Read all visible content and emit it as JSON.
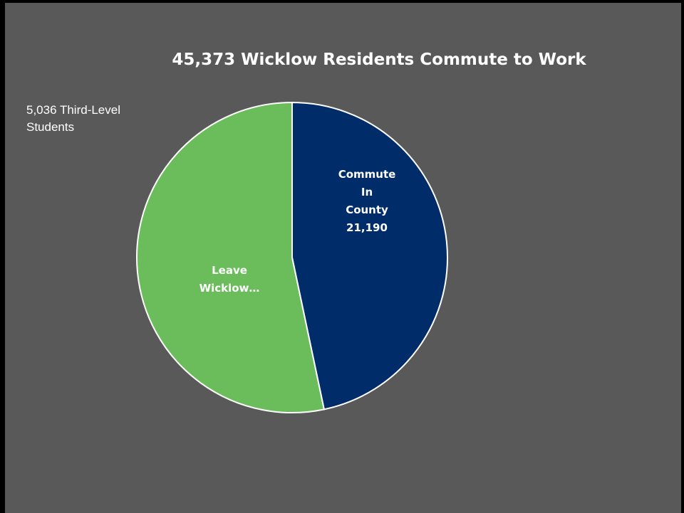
{
  "chart_data": {
    "type": "pie",
    "title": "45,373 Wicklow Residents Commute to Work",
    "annotation": "5,036 Third-Level Students",
    "slices": [
      {
        "label_lines": [
          "Commute",
          "In",
          "County",
          "21,190"
        ],
        "value": 21190,
        "color": "#002d6a"
      },
      {
        "label_lines": [
          "Leave",
          "Wicklow…"
        ],
        "value": 24183,
        "color": "#6bbd5b"
      }
    ]
  },
  "colors": {
    "background": "#595959",
    "slice_border": "#ffffff"
  }
}
